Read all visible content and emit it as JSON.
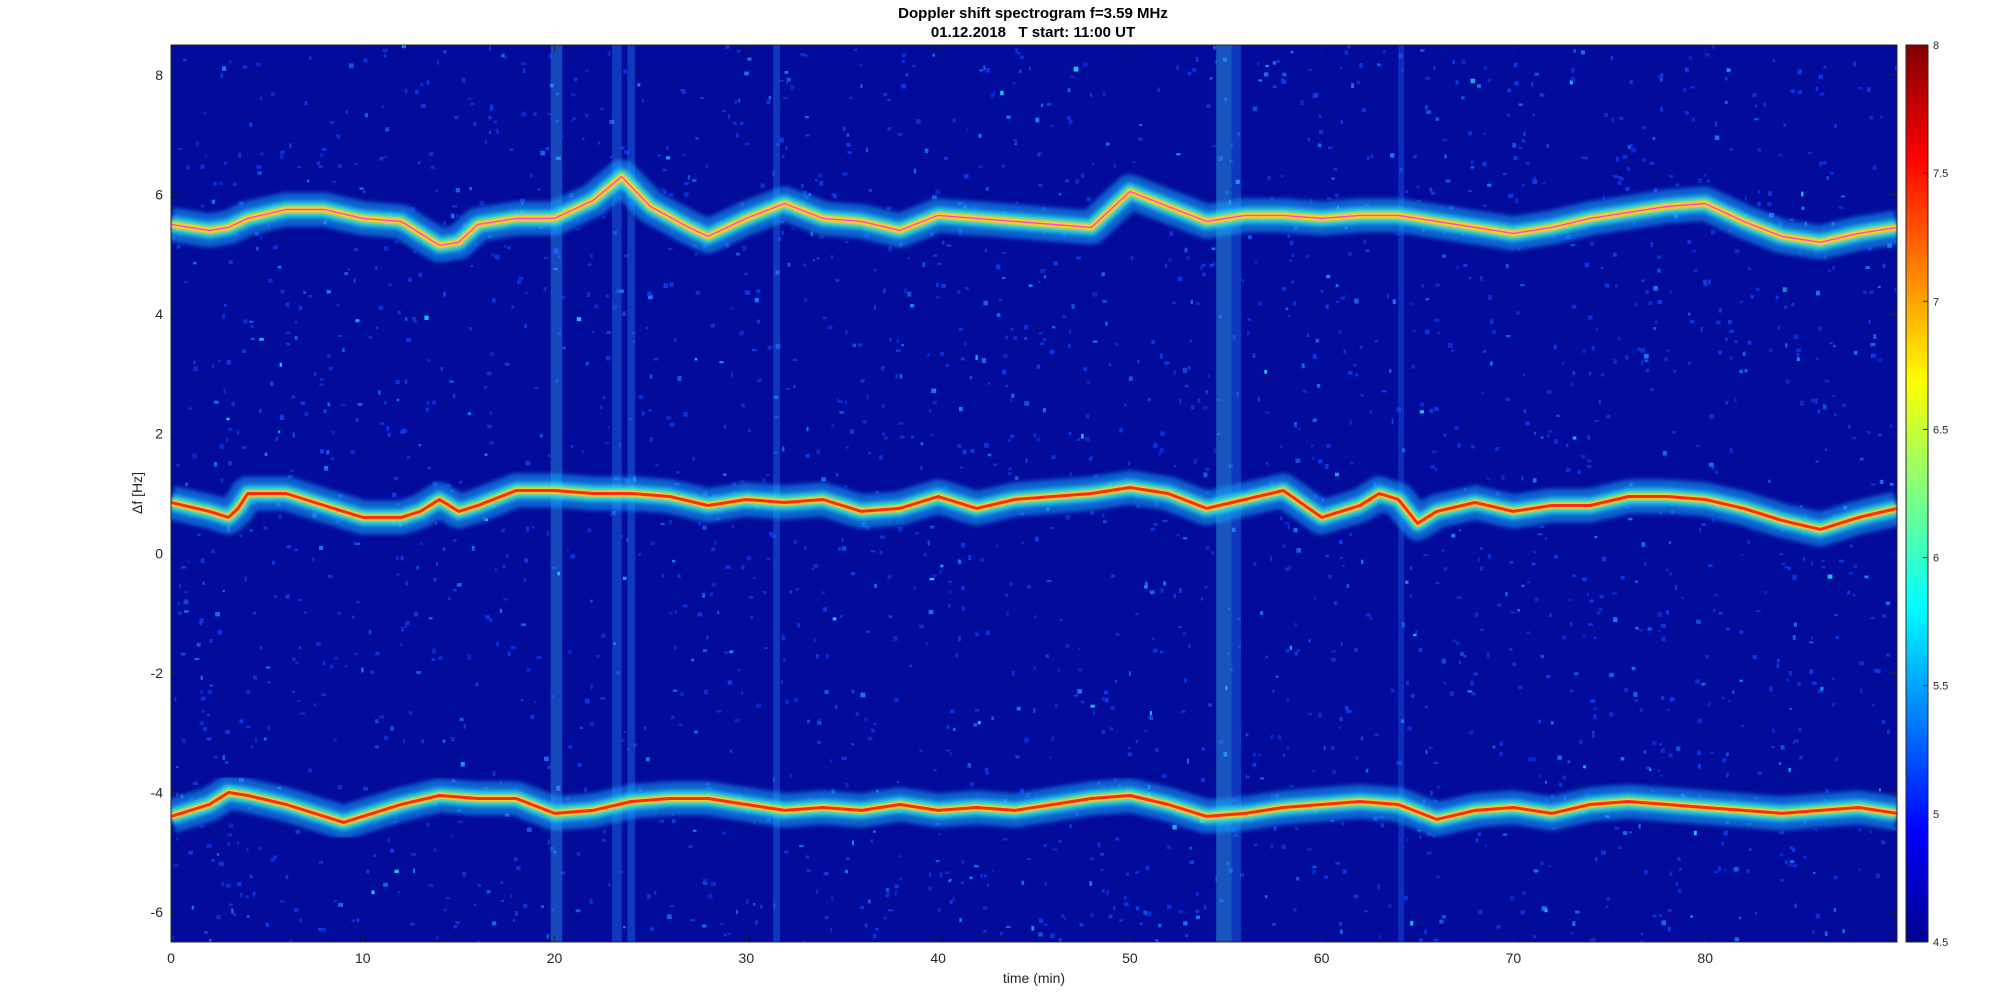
{
  "chart_data": {
    "type": "heatmap",
    "title": "Doppler shift spectrogram f=3.59 MHz",
    "subtitle": "01.12.2018   T start: 11:00 UT",
    "xlabel": "time (min)",
    "ylabel": "Δf [Hz]",
    "xlim": [
      0,
      90
    ],
    "ylim": [
      -6.5,
      8.5
    ],
    "xticks": [
      "0",
      "10",
      "20",
      "30",
      "40",
      "50",
      "60",
      "70",
      "80"
    ],
    "yticks": [
      "8",
      "6",
      "4",
      "2",
      "0",
      "-2",
      "-4",
      "-6"
    ],
    "colorbar": {
      "range": [
        4.5,
        8
      ],
      "ticks": [
        "8",
        "7.5",
        "7",
        "6.5",
        "6",
        "5.5",
        "5",
        "4.5"
      ],
      "colormap": "jet"
    },
    "grid": false,
    "traces": [
      {
        "x": [
          0,
          2,
          3,
          4,
          6,
          8,
          10,
          12,
          13,
          14,
          15,
          16,
          18,
          20,
          22,
          23.5,
          25,
          27,
          28,
          30,
          32,
          34,
          36,
          38,
          40,
          42,
          44,
          46,
          48,
          50,
          52,
          54,
          56,
          58,
          60,
          62,
          64,
          66,
          68,
          70,
          72,
          74,
          76,
          78,
          80,
          82,
          84,
          86,
          88,
          90
        ],
        "y": [
          5.5,
          5.4,
          5.45,
          5.6,
          5.75,
          5.75,
          5.6,
          5.55,
          5.35,
          5.15,
          5.2,
          5.5,
          5.6,
          5.6,
          5.9,
          6.3,
          5.8,
          5.45,
          5.3,
          5.6,
          5.85,
          5.6,
          5.55,
          5.4,
          5.65,
          5.6,
          5.55,
          5.5,
          5.45,
          6.05,
          5.8,
          5.55,
          5.65,
          5.65,
          5.6,
          5.65,
          5.65,
          5.55,
          5.45,
          5.35,
          5.45,
          5.6,
          5.7,
          5.8,
          5.85,
          5.55,
          5.3,
          5.2,
          5.35,
          5.45
        ]
      },
      {
        "x": [
          0,
          2,
          3,
          3.5,
          4,
          6,
          8,
          10,
          12,
          13,
          14,
          15,
          16,
          18,
          20,
          22,
          24,
          26,
          28,
          30,
          32,
          34,
          36,
          38,
          40,
          42,
          44,
          46,
          48,
          50,
          52,
          54,
          56,
          58,
          60,
          62,
          63,
          64,
          65,
          66,
          68,
          70,
          72,
          74,
          76,
          78,
          80,
          82,
          84,
          86,
          88,
          90
        ],
        "y": [
          0.85,
          0.7,
          0.6,
          0.75,
          1.0,
          1.0,
          0.8,
          0.6,
          0.6,
          0.7,
          0.9,
          0.7,
          0.8,
          1.05,
          1.05,
          1.0,
          1.0,
          0.95,
          0.8,
          0.9,
          0.85,
          0.9,
          0.7,
          0.75,
          0.95,
          0.75,
          0.9,
          0.95,
          1.0,
          1.1,
          1.0,
          0.75,
          0.9,
          1.05,
          0.6,
          0.8,
          1.0,
          0.9,
          0.5,
          0.7,
          0.85,
          0.7,
          0.8,
          0.8,
          0.95,
          0.95,
          0.9,
          0.75,
          0.55,
          0.4,
          0.6,
          0.75
        ]
      },
      {
        "x": [
          0,
          2,
          3,
          4,
          6,
          8,
          9,
          10,
          12,
          14,
          16,
          18,
          20,
          22,
          24,
          26,
          28,
          30,
          32,
          34,
          36,
          38,
          40,
          42,
          44,
          46,
          48,
          50,
          52,
          54,
          56,
          58,
          60,
          62,
          64,
          66,
          68,
          70,
          72,
          74,
          76,
          78,
          80,
          82,
          84,
          86,
          88,
          90
        ],
        "y": [
          -4.4,
          -4.2,
          -4.0,
          -4.05,
          -4.2,
          -4.4,
          -4.5,
          -4.4,
          -4.2,
          -4.05,
          -4.1,
          -4.1,
          -4.35,
          -4.3,
          -4.15,
          -4.1,
          -4.1,
          -4.2,
          -4.3,
          -4.25,
          -4.3,
          -4.2,
          -4.3,
          -4.25,
          -4.3,
          -4.2,
          -4.1,
          -4.05,
          -4.2,
          -4.4,
          -4.35,
          -4.25,
          -4.2,
          -4.15,
          -4.2,
          -4.45,
          -4.3,
          -4.25,
          -4.35,
          -4.2,
          -4.15,
          -4.2,
          -4.25,
          -4.3,
          -4.35,
          -4.3,
          -4.25,
          -4.35
        ]
      }
    ]
  }
}
